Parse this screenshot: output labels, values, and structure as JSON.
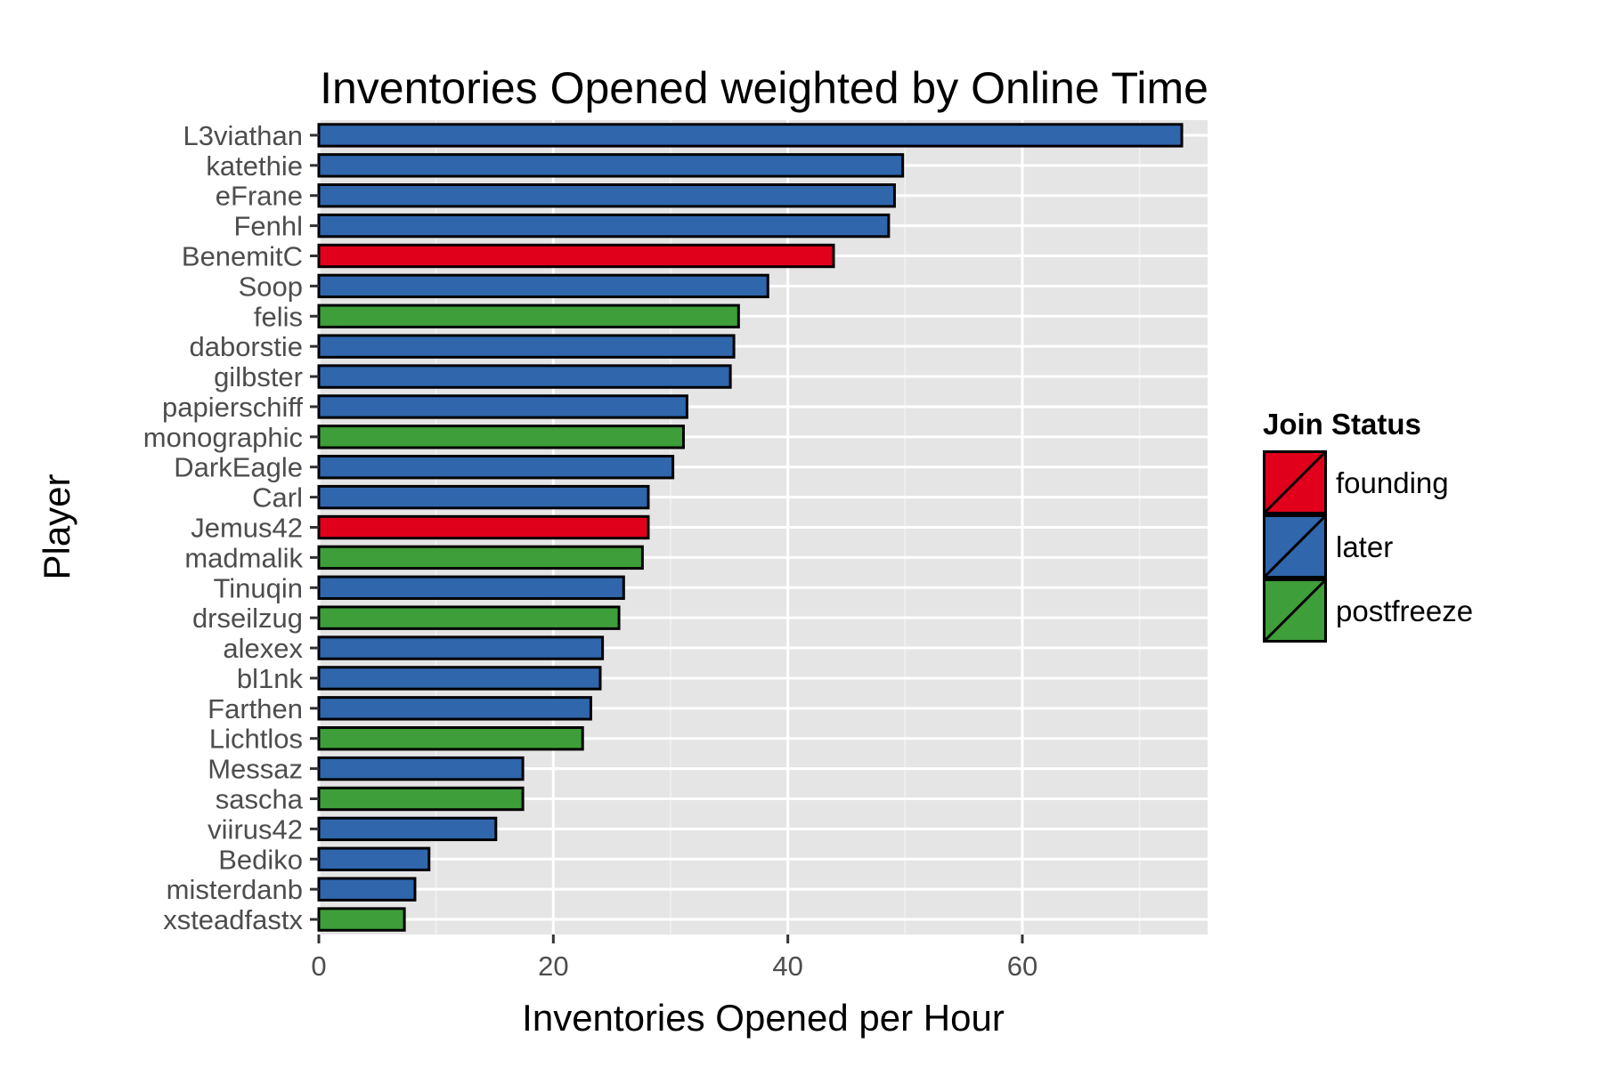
{
  "chart_data": {
    "type": "bar",
    "orientation": "horizontal",
    "title": "Inventories Opened weighted by Online Time",
    "xlabel": "Inventories Opened per Hour",
    "ylabel": "Player",
    "xlim": [
      0,
      75.8
    ],
    "xticks": [
      0,
      20,
      40,
      60
    ],
    "grid": true,
    "legend": {
      "title": "Join Status",
      "placement": "right",
      "entries": [
        {
          "label": "founding",
          "color": "#e0001b"
        },
        {
          "label": "later",
          "color": "#2f66ac"
        },
        {
          "label": "postfreeze",
          "color": "#3e9e3a"
        }
      ]
    },
    "categories": [
      "L3viathan",
      "katethie",
      "eFrane",
      "Fenhl",
      "BenemitC",
      "Soop",
      "felis",
      "daborstie",
      "gilbster",
      "papierschiff",
      "monographic",
      "DarkEagle",
      "Carl",
      "Jemus42",
      "madmalik",
      "Tinuqin",
      "drseilzug",
      "alexex",
      "bl1nk",
      "Farthen",
      "Lichtlos",
      "Messaz",
      "sascha",
      "viirus42",
      "Bediko",
      "misterdanb",
      "xsteadfastx"
    ],
    "values": [
      73.6,
      49.8,
      49.1,
      48.6,
      43.9,
      38.3,
      35.8,
      35.4,
      35.1,
      31.4,
      31.1,
      30.2,
      28.1,
      28.1,
      27.6,
      26.0,
      25.6,
      24.2,
      24.0,
      23.2,
      22.5,
      17.4,
      17.4,
      15.1,
      9.4,
      8.2,
      7.3
    ],
    "groups": [
      "later",
      "later",
      "later",
      "later",
      "founding",
      "later",
      "postfreeze",
      "later",
      "later",
      "later",
      "postfreeze",
      "later",
      "later",
      "founding",
      "postfreeze",
      "later",
      "postfreeze",
      "later",
      "later",
      "later",
      "postfreeze",
      "later",
      "postfreeze",
      "later",
      "later",
      "later",
      "postfreeze"
    ]
  }
}
